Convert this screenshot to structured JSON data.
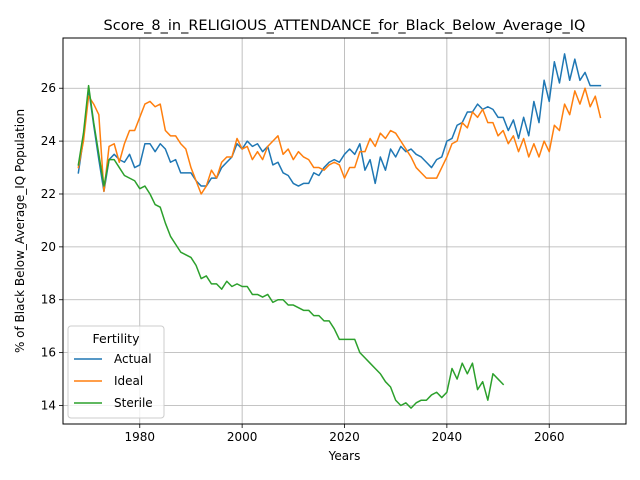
{
  "chart_data": {
    "type": "line",
    "title": "Score_8_in_RELIGIOUS_ATTENDANCE_for_Black_Below_Average_IQ",
    "xlabel": "Years",
    "ylabel": "% of Black Below_Average_IQ Population",
    "xlim": [
      1965,
      2075
    ],
    "ylim": [
      13.3,
      27.9
    ],
    "grid": true,
    "legend_position": "lower left",
    "legend_title": "Fertility",
    "x_ticks": [
      1980,
      2000,
      2020,
      2040,
      2060
    ],
    "y_ticks": [
      14,
      16,
      18,
      20,
      22,
      24,
      26
    ],
    "series": [
      {
        "name": "Actual",
        "color": "#1f77b4",
        "x": [
          1968,
          1969,
          1970,
          1971,
          1972,
          1973,
          1974,
          1975,
          1976,
          1977,
          1978,
          1979,
          1980,
          1981,
          1982,
          1983,
          1984,
          1985,
          1986,
          1987,
          1988,
          1989,
          1990,
          1991,
          1992,
          1993,
          1994,
          1995,
          1996,
          1997,
          1998,
          1999,
          2000,
          2001,
          2002,
          2003,
          2004,
          2005,
          2006,
          2007,
          2008,
          2009,
          2010,
          2011,
          2012,
          2013,
          2014,
          2015,
          2016,
          2017,
          2018,
          2019,
          2020,
          2021,
          2022,
          2023,
          2024,
          2025,
          2026,
          2027,
          2028,
          2029,
          2030,
          2031,
          2032,
          2033,
          2034,
          2035,
          2036,
          2037,
          2038,
          2039,
          2040,
          2041,
          2042,
          2043,
          2044,
          2045,
          2046,
          2047,
          2048,
          2049,
          2050,
          2051,
          2052,
          2053,
          2054,
          2055,
          2056,
          2057,
          2058,
          2059,
          2060,
          2061,
          2062,
          2063,
          2064,
          2065,
          2066,
          2067,
          2068,
          2069,
          2070
        ],
        "values": [
          22.8,
          24.1,
          26.0,
          24.6,
          23.3,
          22.1,
          23.3,
          23.5,
          23.3,
          23.2,
          23.5,
          23.0,
          23.1,
          23.9,
          23.9,
          23.6,
          23.9,
          23.7,
          23.2,
          23.3,
          22.8,
          22.8,
          22.8,
          22.5,
          22.3,
          22.3,
          22.6,
          22.6,
          23.0,
          23.2,
          23.4,
          23.9,
          23.7,
          24.0,
          23.8,
          23.9,
          23.6,
          23.8,
          23.1,
          23.2,
          22.8,
          22.7,
          22.4,
          22.3,
          22.4,
          22.4,
          22.8,
          22.7,
          23.0,
          23.2,
          23.3,
          23.2,
          23.5,
          23.7,
          23.5,
          23.9,
          22.9,
          23.3,
          22.4,
          23.4,
          22.9,
          23.7,
          23.4,
          23.8,
          23.6,
          23.7,
          23.5,
          23.4,
          23.2,
          23.0,
          23.3,
          23.4,
          24.0,
          24.1,
          24.6,
          24.7,
          25.1,
          25.1,
          25.4,
          25.2,
          25.3,
          25.2,
          24.9,
          24.9,
          24.4,
          24.8,
          24.1,
          24.9,
          24.2,
          25.5,
          24.7,
          26.3,
          25.5,
          27.0,
          26.2,
          27.3,
          26.3,
          27.1,
          26.3,
          26.6,
          26.1,
          26.1,
          26.1
        ]
      },
      {
        "name": "Ideal",
        "color": "#ff7f0e",
        "x": [
          1968,
          1969,
          1970,
          1971,
          1972,
          1973,
          1974,
          1975,
          1976,
          1977,
          1978,
          1979,
          1980,
          1981,
          1982,
          1983,
          1984,
          1985,
          1986,
          1987,
          1988,
          1989,
          1990,
          1991,
          1992,
          1993,
          1994,
          1995,
          1996,
          1997,
          1998,
          1999,
          2000,
          2001,
          2002,
          2003,
          2004,
          2005,
          2006,
          2007,
          2008,
          2009,
          2010,
          2011,
          2012,
          2013,
          2014,
          2015,
          2016,
          2017,
          2018,
          2019,
          2020,
          2021,
          2022,
          2023,
          2024,
          2025,
          2026,
          2027,
          2028,
          2029,
          2030,
          2031,
          2032,
          2033,
          2034,
          2035,
          2036,
          2037,
          2038,
          2039,
          2040,
          2041,
          2042,
          2043,
          2044,
          2045,
          2046,
          2047,
          2048,
          2049,
          2050,
          2051,
          2052,
          2053,
          2054,
          2055,
          2056,
          2057,
          2058,
          2059,
          2060,
          2061,
          2062,
          2063,
          2064,
          2065,
          2066,
          2067,
          2068,
          2069,
          2070
        ],
        "values": [
          23.0,
          24.0,
          25.7,
          25.4,
          25.0,
          22.1,
          23.8,
          23.9,
          23.2,
          23.9,
          24.4,
          24.4,
          24.9,
          25.4,
          25.5,
          25.3,
          25.4,
          24.4,
          24.2,
          24.2,
          23.9,
          23.7,
          23.0,
          22.5,
          22.0,
          22.3,
          22.9,
          22.6,
          23.2,
          23.4,
          23.4,
          24.1,
          23.7,
          23.8,
          23.3,
          23.6,
          23.3,
          23.8,
          24.0,
          24.2,
          23.5,
          23.7,
          23.3,
          23.6,
          23.4,
          23.3,
          23.0,
          23.0,
          22.9,
          23.1,
          23.2,
          23.1,
          22.6,
          23.0,
          23.0,
          23.6,
          23.6,
          24.1,
          23.8,
          24.3,
          24.1,
          24.4,
          24.3,
          24.0,
          23.7,
          23.4,
          23.0,
          22.8,
          22.6,
          22.6,
          22.6,
          23.0,
          23.4,
          23.9,
          24.0,
          24.7,
          24.5,
          25.1,
          24.9,
          25.2,
          24.7,
          24.7,
          24.2,
          24.4,
          23.9,
          24.2,
          23.6,
          24.1,
          23.4,
          23.9,
          23.4,
          24.0,
          23.6,
          24.6,
          24.4,
          25.4,
          25.0,
          25.9,
          25.4,
          26.0,
          25.3,
          25.7,
          24.9
        ]
      },
      {
        "name": "Sterile",
        "color": "#2ca02c",
        "x": [
          1968,
          1969,
          1970,
          1971,
          1972,
          1973,
          1974,
          1975,
          1976,
          1977,
          1978,
          1979,
          1980,
          1981,
          1982,
          1983,
          1984,
          1985,
          1986,
          1987,
          1988,
          1989,
          1990,
          1991,
          1992,
          1993,
          1994,
          1995,
          1996,
          1997,
          1998,
          1999,
          2000,
          2001,
          2002,
          2003,
          2004,
          2005,
          2006,
          2007,
          2008,
          2009,
          2010,
          2011,
          2012,
          2013,
          2014,
          2015,
          2016,
          2017,
          2018,
          2019,
          2020,
          2021,
          2022,
          2023,
          2024,
          2025,
          2026,
          2027,
          2028,
          2029,
          2030,
          2031,
          2032,
          2033,
          2034,
          2035,
          2036,
          2037,
          2038,
          2039,
          2040,
          2041,
          2042,
          2043,
          2044,
          2045,
          2046,
          2047,
          2048,
          2049,
          2050,
          2051
        ],
        "values": [
          23.1,
          24.3,
          26.1,
          24.7,
          23.5,
          22.3,
          23.3,
          23.3,
          23.0,
          22.7,
          22.6,
          22.5,
          22.2,
          22.3,
          22.0,
          21.6,
          21.5,
          20.9,
          20.4,
          20.1,
          19.8,
          19.7,
          19.6,
          19.3,
          18.8,
          18.9,
          18.6,
          18.6,
          18.4,
          18.7,
          18.5,
          18.6,
          18.5,
          18.5,
          18.2,
          18.2,
          18.1,
          18.2,
          17.9,
          18.0,
          18.0,
          17.8,
          17.8,
          17.7,
          17.6,
          17.6,
          17.4,
          17.4,
          17.2,
          17.2,
          16.9,
          16.5,
          16.5,
          16.5,
          16.5,
          16.0,
          15.8,
          15.6,
          15.4,
          15.2,
          14.9,
          14.7,
          14.2,
          14.0,
          14.1,
          13.9,
          14.1,
          14.2,
          14.2,
          14.4,
          14.5,
          14.3,
          14.5,
          15.4,
          15.0,
          15.6,
          15.2,
          15.6,
          14.6,
          14.9,
          14.2,
          15.2,
          15.0,
          14.8
        ]
      }
    ]
  }
}
